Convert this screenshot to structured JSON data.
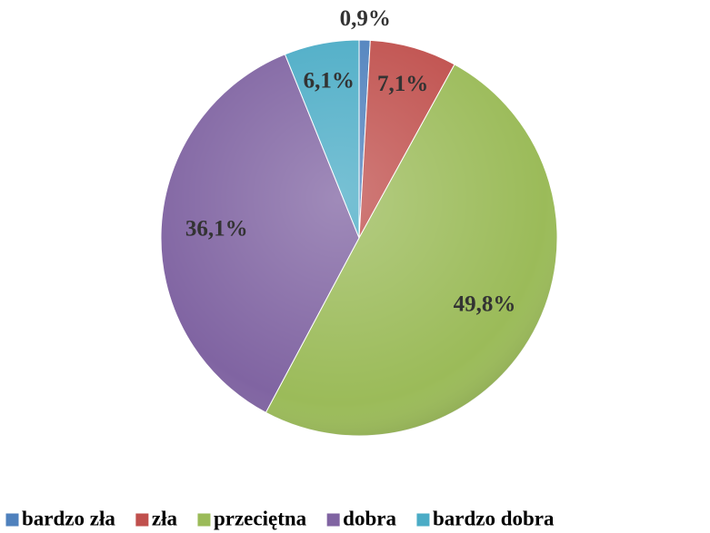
{
  "chart_data": {
    "type": "pie",
    "categories": [
      "bardzo zła",
      "zła",
      "przeciętna",
      "dobra",
      "bardzo dobra"
    ],
    "values": [
      0.9,
      7.1,
      49.8,
      36.1,
      6.1
    ],
    "value_labels": [
      "0,9%",
      "7,1%",
      "49,8%",
      "36,1%",
      "6,1%"
    ],
    "colors": [
      "#4f81bd",
      "#c0504d",
      "#9bbb59",
      "#8064a2",
      "#4bacc6"
    ],
    "legend": "bottom"
  }
}
